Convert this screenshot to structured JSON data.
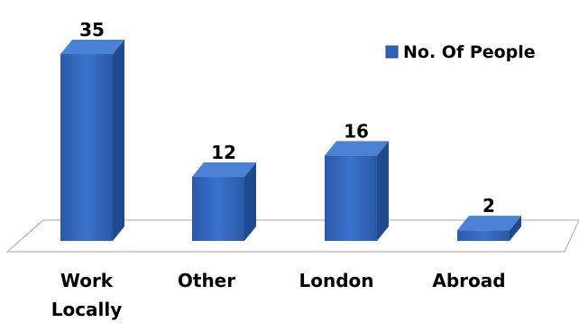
{
  "chart_data": {
    "type": "bar",
    "categories": [
      "Work Locally",
      "Other",
      "London",
      "Abroad"
    ],
    "series": [
      {
        "name": "No. Of People",
        "values": [
          35,
          12,
          16,
          2
        ],
        "color": "#2E62B8"
      }
    ],
    "ylim": [
      0,
      35
    ],
    "grid": false,
    "legend_position": "top-right",
    "data_labels": true,
    "style": "3d-column"
  },
  "colors": {
    "bar_front": "#2E62B8",
    "bar_side": "#1F4A8F",
    "bar_top": "#4C82D6",
    "floor_stroke": "#A6A6A6"
  }
}
